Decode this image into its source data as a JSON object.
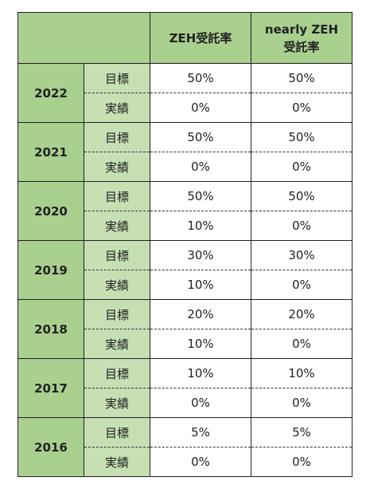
{
  "header": {
    "col_zeh": "ZEH受託率",
    "col_nearly_line1": "nearly ZEH",
    "col_nearly_line2": "受託率"
  },
  "rows": [
    {
      "year": "2022",
      "target_label": "目標",
      "target_zeh": "50%",
      "target_nearly": "50%",
      "actual_label": "実績",
      "actual_zeh": "0%",
      "actual_nearly": "0%"
    },
    {
      "year": "2021",
      "target_label": "目標",
      "target_zeh": "50%",
      "target_nearly": "50%",
      "actual_label": "実績",
      "actual_zeh": "0%",
      "actual_nearly": "0%"
    },
    {
      "year": "2020",
      "target_label": "目標",
      "target_zeh": "50%",
      "target_nearly": "50%",
      "actual_label": "実績",
      "actual_zeh": "10%",
      "actual_nearly": "0%"
    },
    {
      "year": "2019",
      "target_label": "目標",
      "target_zeh": "30%",
      "target_nearly": "30%",
      "actual_label": "実績",
      "actual_zeh": "10%",
      "actual_nearly": "0%"
    },
    {
      "year": "2018",
      "target_label": "目標",
      "target_zeh": "20%",
      "target_nearly": "20%",
      "actual_label": "実績",
      "actual_zeh": "10%",
      "actual_nearly": "0%"
    },
    {
      "year": "2017",
      "target_label": "目標",
      "target_zeh": "10%",
      "target_nearly": "10%",
      "actual_label": "実績",
      "actual_zeh": "0%",
      "actual_nearly": "0%"
    },
    {
      "year": "2016",
      "target_label": "目標",
      "target_zeh": "5%",
      "target_nearly": "5%",
      "actual_label": "実績",
      "actual_zeh": "0%",
      "actual_nearly": "0%"
    }
  ],
  "colors": {
    "header_green": "#a9d08e",
    "type_green": "#c6e0b4"
  }
}
